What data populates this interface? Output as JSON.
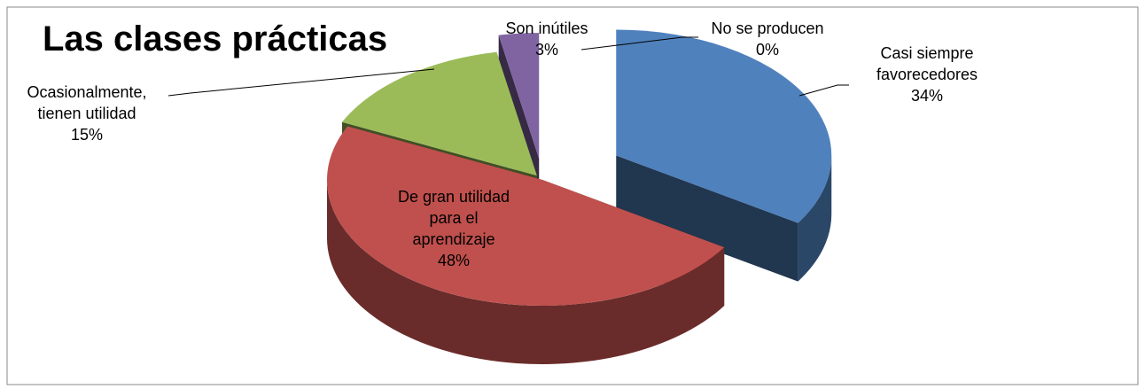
{
  "chart_data": {
    "type": "pie3d",
    "title": "Las clases prácticas",
    "categories": [
      "Casi siempre favorecedores",
      "De gran utilidad para el aprendizaje",
      "Ocasionalmente, tienen utilidad",
      "Son inútiles",
      "No se producen"
    ],
    "values": [
      34,
      48,
      15,
      3,
      0
    ],
    "value_labels": [
      "34%",
      "48%",
      "15%",
      "3%",
      "0%"
    ],
    "colors": [
      "#4f81bd",
      "#c0504d",
      "#9bbb59",
      "#8064a2",
      "#4bacc6"
    ]
  }
}
